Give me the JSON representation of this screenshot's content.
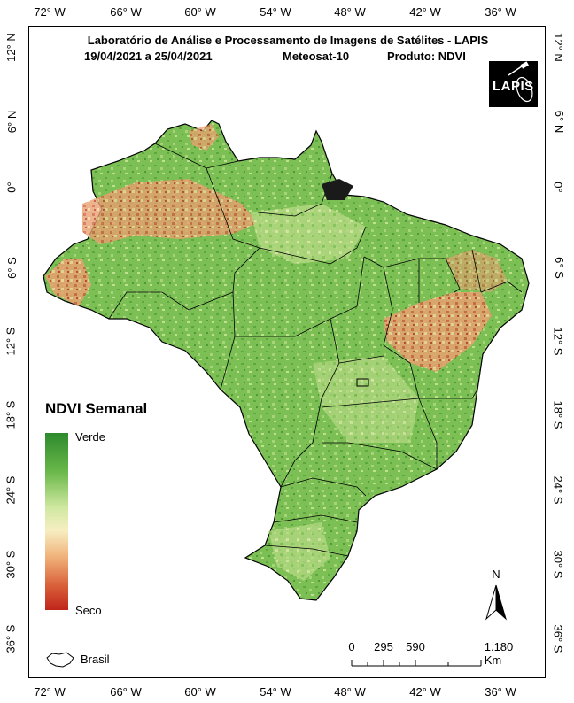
{
  "map": {
    "title": "Laboratório de Análise e Processamento de Imagens de Satélites - LAPIS",
    "date_range": "19/04/2021  a  25/04/2021",
    "satellite": "Meteosat-10",
    "product": "Produto: NDVI",
    "logo_text": "LAPIS",
    "longitude_labels": [
      "72° W",
      "66° W",
      "60° W",
      "54° W",
      "48° W",
      "42° W",
      "36° W"
    ],
    "latitude_labels": [
      "12° N",
      "6° N",
      "0°",
      "6° S",
      "12° S",
      "18° S",
      "24° S",
      "30° S",
      "36° S"
    ]
  },
  "legend": {
    "title": "NDVI Semanal",
    "high_label": "Verde",
    "low_label": "Seco",
    "country_label": "Brasil",
    "colors": {
      "green": "#2d8a2d",
      "light": "#f7eec2",
      "dry": "#c0241a"
    }
  },
  "scale_bar": {
    "labels": [
      "0",
      "295",
      "590",
      "1.180 Km"
    ]
  },
  "north_arrow": {
    "label": "N"
  }
}
